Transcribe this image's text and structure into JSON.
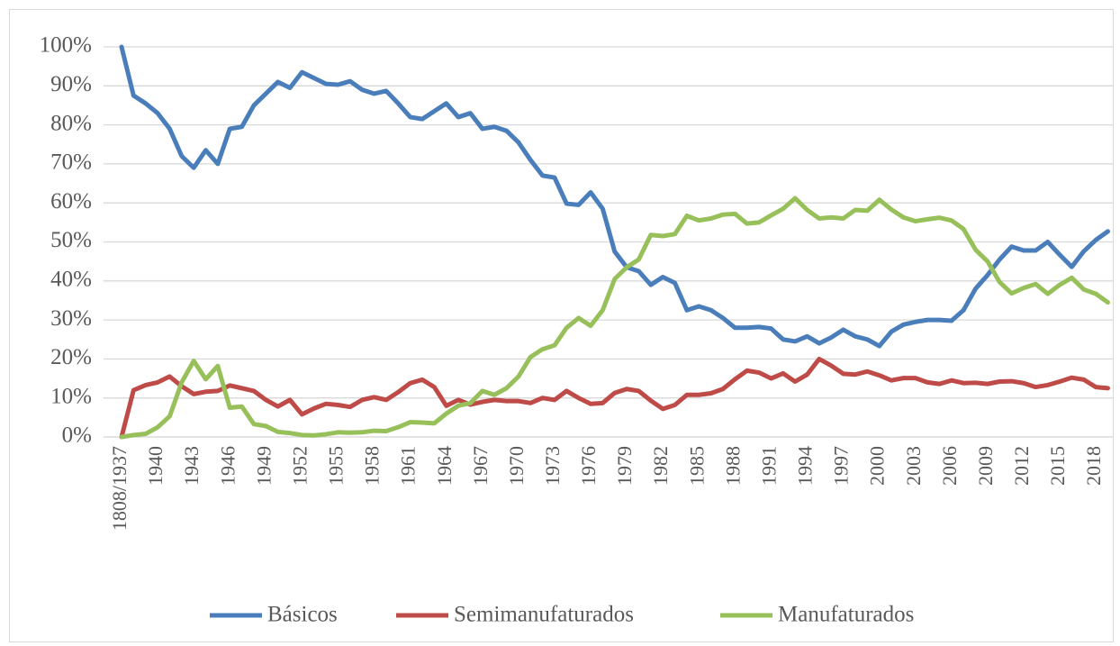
{
  "chart_data": {
    "type": "line",
    "categories": [
      "1808/1937",
      null,
      null,
      "1940",
      null,
      null,
      "1943",
      null,
      null,
      "1946",
      null,
      null,
      "1949",
      null,
      null,
      "1952",
      null,
      null,
      "1955",
      null,
      null,
      "1958",
      null,
      null,
      "1961",
      null,
      null,
      "1964",
      null,
      null,
      "1967",
      null,
      null,
      "1970",
      null,
      null,
      "1973",
      null,
      null,
      "1976",
      null,
      null,
      "1979",
      null,
      null,
      "1982",
      null,
      null,
      "1985",
      null,
      null,
      "1988",
      null,
      null,
      "1991",
      null,
      null,
      "1994",
      null,
      null,
      "1997",
      null,
      null,
      "2000",
      null,
      null,
      "2003",
      null,
      null,
      "2006",
      null,
      null,
      "2009",
      null,
      null,
      "2012",
      null,
      null,
      "2015",
      null,
      null,
      "2018",
      null
    ],
    "series": [
      {
        "name": "Básicos",
        "color": "#4a7ebb",
        "values": [
          100,
          87.5,
          85.5,
          83,
          79,
          72,
          69,
          73.5,
          70,
          79,
          79.5,
          85,
          88,
          91,
          89.5,
          93.5,
          92,
          90.5,
          90.3,
          91.2,
          89,
          88,
          88.7,
          85.5,
          82,
          81.5,
          83.5,
          85.5,
          82,
          83,
          79,
          79.5,
          78.5,
          75.5,
          71,
          67,
          66.5,
          59.8,
          59.5,
          62.7,
          58.5,
          47.5,
          43.5,
          42.5,
          39,
          41,
          39.5,
          32.5,
          33.5,
          32.5,
          30.5,
          28,
          28,
          28.2,
          27.8,
          25,
          24.5,
          25.8,
          24,
          25.5,
          27.5,
          25.8,
          25,
          23.3,
          27,
          28.8,
          29.5,
          30,
          30,
          29.8,
          32.5,
          38,
          41.5,
          45.5,
          48.8,
          47.8,
          47.8,
          50,
          46.7,
          43.6,
          47.6,
          50.5,
          52.7
        ]
      },
      {
        "name": "Semimanufaturados",
        "color": "#be4b48",
        "values": [
          0,
          12,
          13.3,
          14,
          15.5,
          13,
          11,
          11.6,
          11.8,
          13.2,
          12.5,
          11.8,
          9.5,
          7.8,
          9.5,
          5.8,
          7.3,
          8.5,
          8.2,
          7.7,
          9.5,
          10.2,
          9.5,
          11.5,
          13.8,
          14.7,
          12.8,
          8,
          9.5,
          8.3,
          9,
          9.5,
          9.2,
          9.2,
          8.7,
          10,
          9.5,
          11.8,
          10,
          8.5,
          8.7,
          11.3,
          12.3,
          11.8,
          9.3,
          7.2,
          8.2,
          10.8,
          10.8,
          11.2,
          12.3,
          14.8,
          17,
          16.5,
          15,
          16.3,
          14.2,
          16,
          20,
          18.3,
          16.2,
          16,
          16.8,
          15.8,
          14.5,
          15.1,
          15.1,
          14,
          13.6,
          14.5,
          13.8,
          13.9,
          13.6,
          14.2,
          14.3,
          13.8,
          12.8,
          13.3,
          14.2,
          15.2,
          14.7,
          12.8,
          12.5
        ]
      },
      {
        "name": "Manufaturados",
        "color": "#98c05a",
        "values": [
          0,
          0.5,
          0.8,
          2.5,
          5.3,
          14,
          19.5,
          14.8,
          18.2,
          7.5,
          7.8,
          3.3,
          2.8,
          1.3,
          1,
          0.5,
          0.4,
          0.7,
          1.2,
          1.1,
          1.2,
          1.6,
          1.5,
          2.5,
          3.8,
          3.7,
          3.5,
          6,
          8,
          8.7,
          11.8,
          10.8,
          12.5,
          15.5,
          20.5,
          22.5,
          23.5,
          28,
          30.5,
          28.5,
          32.5,
          40.5,
          43.5,
          45.5,
          51.8,
          51.5,
          52,
          56.7,
          55.5,
          56,
          57,
          57.2,
          54.7,
          55,
          56.8,
          58.5,
          61.2,
          58.2,
          56,
          56.3,
          56,
          58.2,
          58,
          60.8,
          58.3,
          56.3,
          55.3,
          55.8,
          56.2,
          55.5,
          53.3,
          48,
          45,
          39.7,
          36.8,
          38.2,
          39.2,
          36.7,
          39,
          40.8,
          37.8,
          36.7,
          34.5
        ]
      }
    ],
    "ylim": [
      0,
      100
    ],
    "yticks": [
      {
        "value": 0,
        "label": "0%"
      },
      {
        "value": 10,
        "label": "10%"
      },
      {
        "value": 20,
        "label": "20%"
      },
      {
        "value": 30,
        "label": "30%"
      },
      {
        "value": 40,
        "label": "40%"
      },
      {
        "value": 50,
        "label": "50%"
      },
      {
        "value": 60,
        "label": "60%"
      },
      {
        "value": 70,
        "label": "70%"
      },
      {
        "value": 80,
        "label": "80%"
      },
      {
        "value": 90,
        "label": "90%"
      },
      {
        "value": 100,
        "label": "100%"
      }
    ],
    "grid": true,
    "legend": "bottom"
  }
}
